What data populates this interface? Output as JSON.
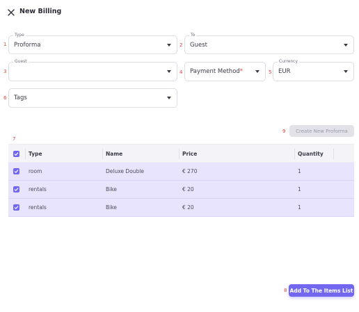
{
  "header": {
    "title": "New Billing",
    "close_icon": "close-icon"
  },
  "markers": [
    "1",
    "2",
    "3",
    "4",
    "5",
    "6",
    "7",
    "8",
    "9"
  ],
  "form": {
    "type": {
      "label": "Type",
      "value": "Proforma"
    },
    "to": {
      "label": "To",
      "value": "Guest"
    },
    "guest": {
      "label": "Guest",
      "value": ""
    },
    "payment_method": {
      "placeholder": "Payment Method",
      "required_mark": "*"
    },
    "currency": {
      "label": "Currency",
      "value": "EUR"
    },
    "tags": {
      "placeholder": "Tags"
    }
  },
  "actions": {
    "create_proforma": "Create New Proforma",
    "add_to_items": "Add To The Items List"
  },
  "table": {
    "columns": [
      "Type",
      "Name",
      "Price",
      "Quantity"
    ],
    "rows": [
      {
        "checked": true,
        "type": "room",
        "name": "Deluxe Double",
        "price": "€ 270",
        "quantity": "1"
      },
      {
        "checked": true,
        "type": "rentals",
        "name": "Bike",
        "price": "€ 20",
        "quantity": "1"
      },
      {
        "checked": true,
        "type": "rentals",
        "name": "Bike",
        "price": "€ 20",
        "quantity": "1"
      }
    ]
  },
  "colors": {
    "accent": "#7367f0",
    "row_selected": "#e8e4fd",
    "marker": "#e0433a"
  }
}
